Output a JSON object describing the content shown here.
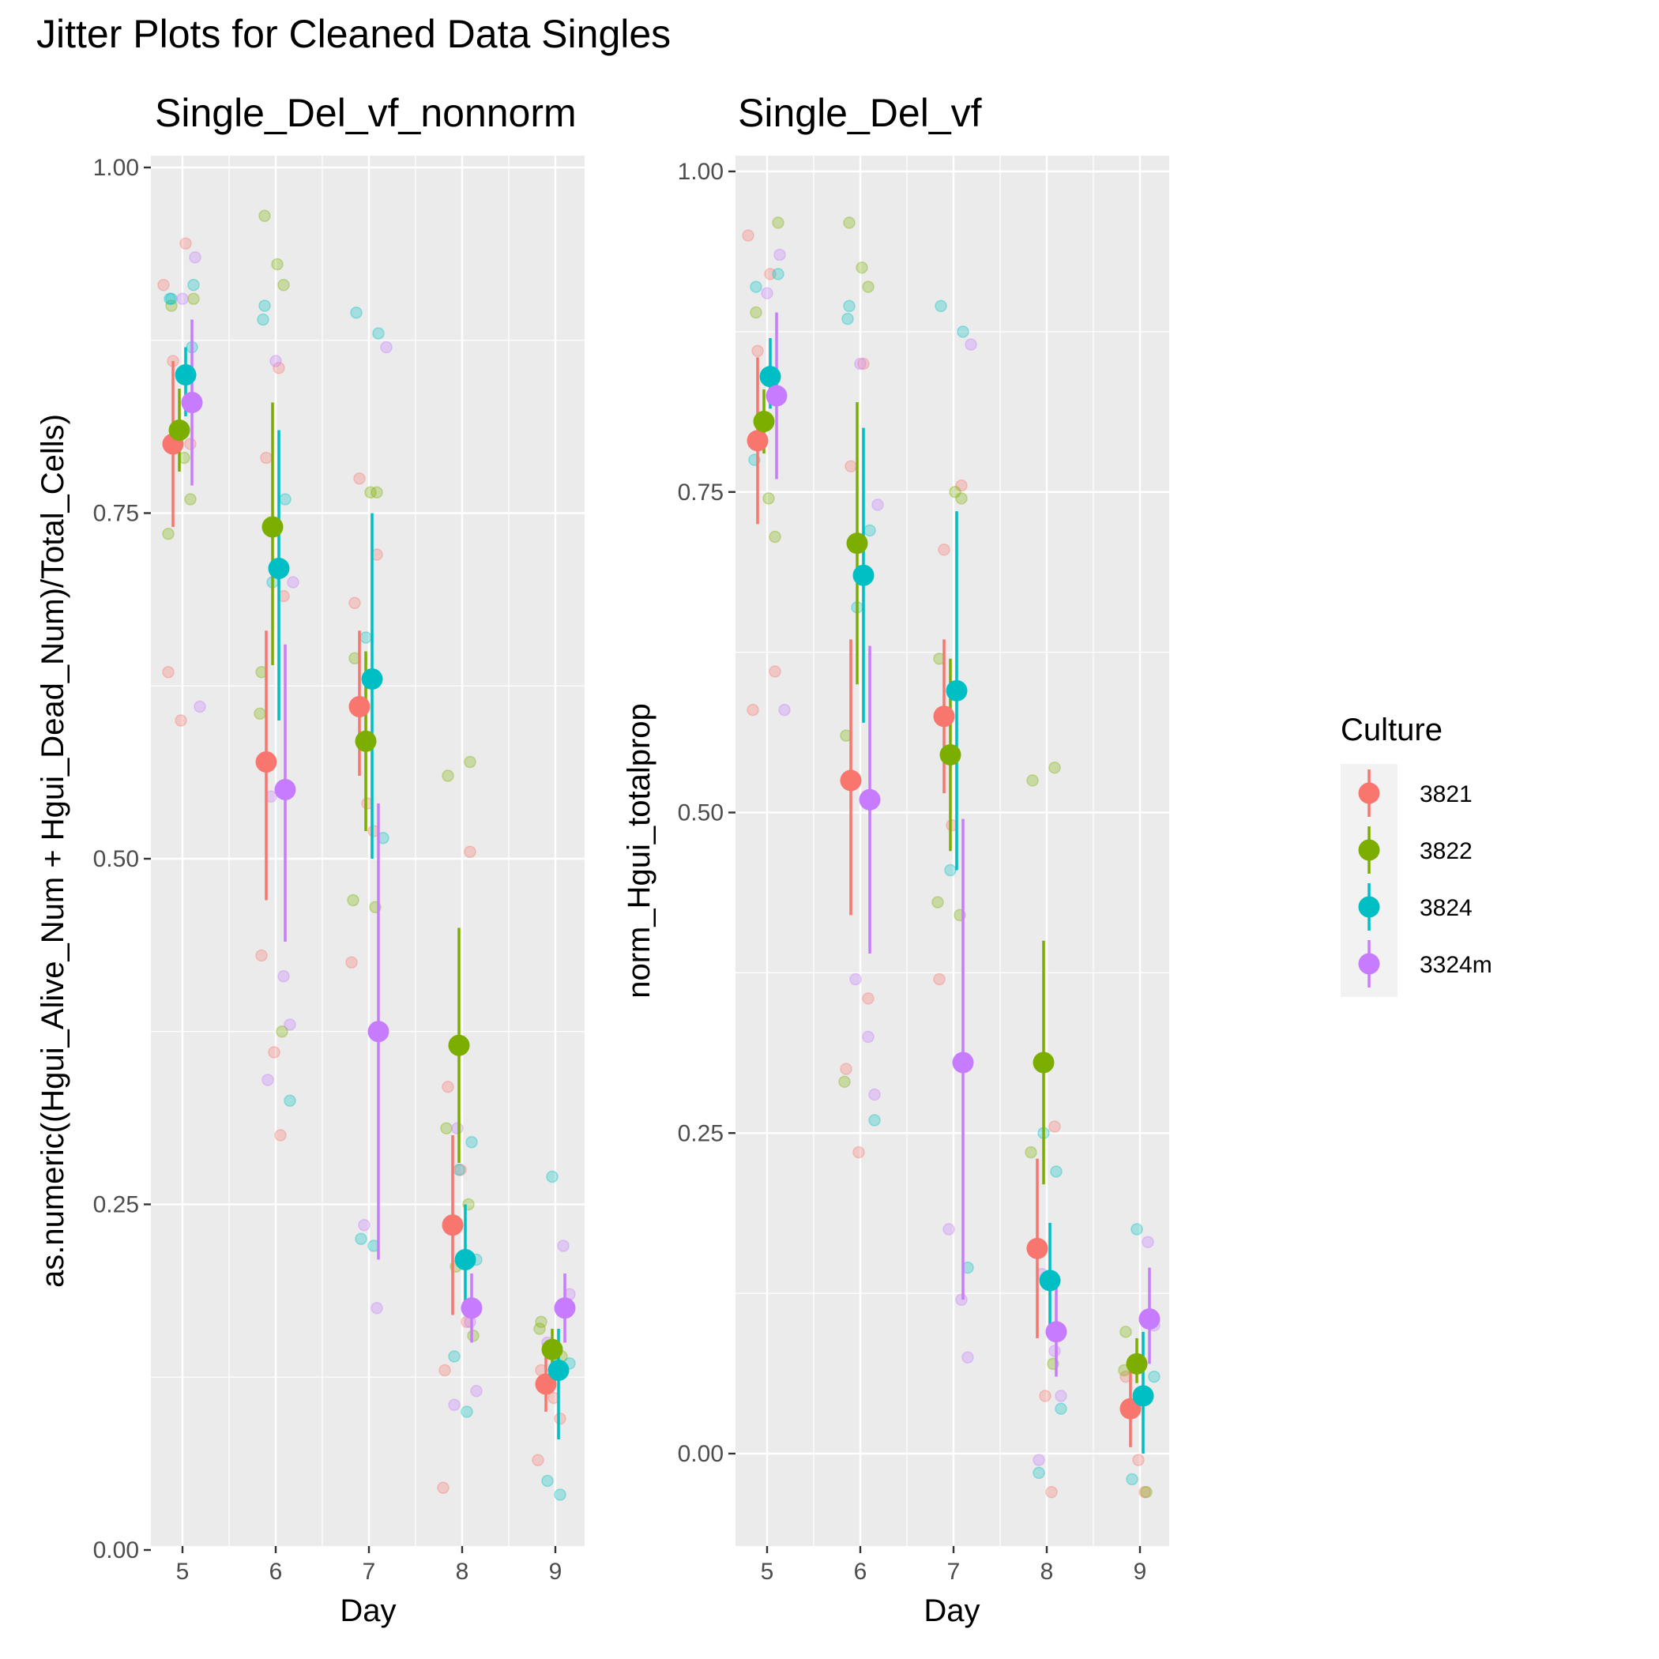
{
  "title": "Jitter Plots for Cleaned Data Singles",
  "legend": {
    "title": "Culture",
    "entries": [
      {
        "label": "3821",
        "color": "#F8766D"
      },
      {
        "label": "3822",
        "color": "#7CAE00"
      },
      {
        "label": "3824",
        "color": "#00BFC4"
      },
      {
        "label": "3324m",
        "color": "#C77CFF"
      }
    ]
  },
  "chart_data": [
    {
      "type": "scatter",
      "title": "Single_Del_vf_nonnorm",
      "xlabel": "Day",
      "ylabel": "as.numeric((Hgui_Alive_Num + Hgui_Dead_Num)/Total_Cells)",
      "categories": [
        "5",
        "6",
        "7",
        "8",
        "9"
      ],
      "ylim": [
        0,
        1
      ],
      "yticks": [
        "0.00",
        "0.25",
        "0.50",
        "0.75",
        "1.00"
      ],
      "summary_series": [
        {
          "name": "3821",
          "mean": [
            0.8,
            0.57,
            0.61,
            0.235,
            0.12
          ],
          "lower": [
            0.74,
            0.47,
            0.56,
            0.17,
            0.1
          ],
          "upper": [
            0.86,
            0.665,
            0.665,
            0.3,
            0.14
          ]
        },
        {
          "name": "3822",
          "mean": [
            0.81,
            0.74,
            0.585,
            0.365,
            0.145
          ],
          "lower": [
            0.78,
            0.64,
            0.52,
            0.28,
            0.13
          ],
          "upper": [
            0.84,
            0.83,
            0.65,
            0.45,
            0.16
          ]
        },
        {
          "name": "3824",
          "mean": [
            0.85,
            0.71,
            0.63,
            0.21,
            0.13
          ],
          "lower": [
            0.82,
            0.6,
            0.5,
            0.17,
            0.08
          ],
          "upper": [
            0.87,
            0.81,
            0.75,
            0.25,
            0.16
          ]
        },
        {
          "name": "3324m",
          "mean": [
            0.83,
            0.55,
            0.375,
            0.175,
            0.175
          ],
          "lower": [
            0.77,
            0.44,
            0.21,
            0.15,
            0.15
          ],
          "upper": [
            0.89,
            0.655,
            0.54,
            0.2,
            0.2
          ]
        }
      ],
      "raw_points": [
        {
          "name": "3821",
          "values": [
            [
              0.915,
              0.945,
              0.86,
              0.8,
              0.635,
              0.6
            ],
            [
              0.855,
              0.79,
              0.69,
              0.43,
              0.36,
              0.3
            ],
            [
              0.775,
              0.72,
              0.685,
              0.54,
              0.52,
              0.425
            ],
            [
              0.505,
              0.335,
              0.275,
              0.165,
              0.13,
              0.045
            ],
            [
              0.13,
              0.11,
              0.095,
              0.065
            ]
          ]
        },
        {
          "name": "3822",
          "values": [
            [
              0.905,
              0.9,
              0.79,
              0.76,
              0.735
            ],
            [
              0.965,
              0.93,
              0.915,
              0.635,
              0.605,
              0.375
            ],
            [
              0.765,
              0.765,
              0.645,
              0.47,
              0.465
            ],
            [
              0.57,
              0.56,
              0.305,
              0.25,
              0.205,
              0.155
            ],
            [
              0.165,
              0.16,
              0.14
            ]
          ]
        },
        {
          "name": "3824",
          "values": [
            [
              0.915,
              0.905,
              0.905,
              0.87
            ],
            [
              0.9,
              0.89,
              0.76,
              0.7,
              0.325
            ],
            [
              0.895,
              0.88,
              0.66,
              0.515,
              0.225,
              0.22
            ],
            [
              0.295,
              0.275,
              0.21,
              0.14,
              0.1
            ],
            [
              0.27,
              0.135,
              0.05,
              0.04
            ]
          ]
        },
        {
          "name": "3324m",
          "values": [
            [
              0.935,
              0.905,
              0.61
            ],
            [
              0.86,
              0.7,
              0.545,
              0.415,
              0.38,
              0.34
            ],
            [
              0.87,
              0.235,
              0.175
            ],
            [
              0.305,
              0.165,
              0.115,
              0.105
            ],
            [
              0.22,
              0.185,
              0.15
            ]
          ]
        }
      ]
    },
    {
      "type": "scatter",
      "title": "Single_Del_vf",
      "xlabel": "Day",
      "ylabel": "norm_Hgui_totalprop",
      "categories": [
        "5",
        "6",
        "7",
        "8",
        "9"
      ],
      "ylim": [
        -0.08,
        1.02
      ],
      "yticks": [
        "0.00",
        "0.25",
        "0.50",
        "0.75",
        "1.00"
      ],
      "summary_series": [
        {
          "name": "3821",
          "mean": [
            0.79,
            0.525,
            0.575,
            0.16,
            0.035
          ],
          "lower": [
            0.725,
            0.42,
            0.515,
            0.09,
            0.005
          ],
          "upper": [
            0.855,
            0.635,
            0.635,
            0.23,
            0.065
          ]
        },
        {
          "name": "3822",
          "mean": [
            0.805,
            0.71,
            0.545,
            0.305,
            0.07
          ],
          "lower": [
            0.78,
            0.6,
            0.47,
            0.21,
            0.055
          ],
          "upper": [
            0.83,
            0.82,
            0.62,
            0.4,
            0.09
          ]
        },
        {
          "name": "3824",
          "mean": [
            0.84,
            0.685,
            0.595,
            0.135,
            0.045
          ],
          "lower": [
            0.815,
            0.57,
            0.455,
            0.095,
            0.0
          ],
          "upper": [
            0.87,
            0.8,
            0.735,
            0.18,
            0.095
          ]
        },
        {
          "name": "3324m",
          "mean": [
            0.825,
            0.51,
            0.305,
            0.095,
            0.105
          ],
          "lower": [
            0.76,
            0.39,
            0.12,
            0.06,
            0.07
          ],
          "upper": [
            0.89,
            0.63,
            0.495,
            0.13,
            0.145
          ]
        }
      ],
      "raw_points": [
        {
          "name": "3821",
          "values": [
            [
              0.95,
              0.92,
              0.86,
              0.61,
              0.58
            ],
            [
              0.85,
              0.77,
              0.355,
              0.3,
              0.235
            ],
            [
              0.705,
              0.755,
              0.37,
              0.49
            ],
            [
              0.255,
              0.16,
              0.045,
              -0.03
            ],
            [
              0.06,
              -0.005,
              -0.03
            ]
          ]
        },
        {
          "name": "3822",
          "values": [
            [
              0.96,
              0.89,
              0.745,
              0.715
            ],
            [
              0.96,
              0.925,
              0.91,
              0.56,
              0.29
            ],
            [
              0.75,
              0.745,
              0.62,
              0.43,
              0.42
            ],
            [
              0.535,
              0.525,
              0.235,
              0.07
            ],
            [
              0.095,
              0.065,
              -0.03
            ]
          ]
        },
        {
          "name": "3824",
          "values": [
            [
              0.92,
              0.91,
              0.775
            ],
            [
              0.895,
              0.885,
              0.72,
              0.66,
              0.26
            ],
            [
              0.895,
              0.875,
              0.455,
              0.145
            ],
            [
              0.22,
              0.25,
              0.035,
              -0.015
            ],
            [
              0.175,
              0.06,
              -0.02
            ]
          ]
        },
        {
          "name": "3324m",
          "values": [
            [
              0.935,
              0.905,
              0.58
            ],
            [
              0.85,
              0.74,
              0.37,
              0.325,
              0.28
            ],
            [
              0.865,
              0.175,
              0.12,
              0.075
            ],
            [
              0.14,
              0.08,
              0.045,
              -0.005
            ],
            [
              0.165,
              0.1
            ]
          ]
        }
      ]
    }
  ]
}
